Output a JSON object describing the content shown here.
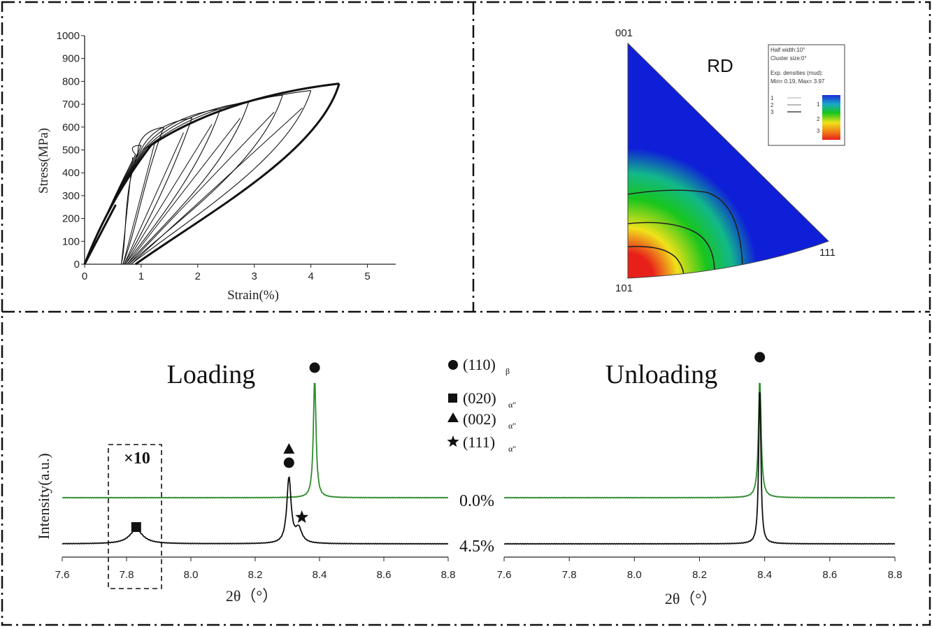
{
  "chart_data": [
    {
      "type": "line",
      "panel": "stress-strain",
      "xlabel": "Strain(%)",
      "ylabel": "Stress(MPa)",
      "xlim": [
        0,
        5.5
      ],
      "ylim": [
        0,
        1000
      ],
      "xticks": [
        "0",
        "1",
        "2",
        "3",
        "4",
        "5"
      ],
      "yticks": [
        "0",
        "100",
        "200",
        "300",
        "400",
        "500",
        "600",
        "700",
        "800",
        "900",
        "1000"
      ],
      "grid": false,
      "cycles": [
        {
          "max_strain": 1.0,
          "max_stress": 520,
          "residual_strain": 0.65
        },
        {
          "max_strain": 1.4,
          "max_stress": 600,
          "residual_strain": 0.68
        },
        {
          "max_strain": 1.9,
          "max_stress": 640,
          "residual_strain": 0.7
        },
        {
          "max_strain": 2.4,
          "max_stress": 680,
          "residual_strain": 0.72
        },
        {
          "max_strain": 2.9,
          "max_stress": 710,
          "residual_strain": 0.75
        },
        {
          "max_strain": 3.5,
          "max_stress": 740,
          "residual_strain": 0.78
        },
        {
          "max_strain": 4.0,
          "max_stress": 760,
          "residual_strain": 0.82
        },
        {
          "max_strain": 4.5,
          "max_stress": 790,
          "residual_strain": 0.9
        }
      ],
      "final_cycle_bold": true
    },
    {
      "type": "heatmap",
      "panel": "inverse-pole-figure",
      "title": "RD",
      "poles": [
        "001",
        "101",
        "111"
      ],
      "legend": {
        "lines": [
          "Half width:10°",
          "Cluster size:0°",
          "Exp. densities (mud):",
          "Min= 0.19, Max= 3.97"
        ],
        "contour_levels": [
          "1",
          "2",
          "3"
        ],
        "colorbar_labels": [
          "1",
          "2",
          "3"
        ],
        "min": 0.19,
        "max": 3.97
      },
      "colors": {
        "high": "#e8201a",
        "mid": "#f0e21a",
        "low": "#18c51c",
        "bg": "#0f1fd8"
      }
    },
    {
      "type": "line",
      "panel": "xrd-loading",
      "title": "Loading",
      "xlabel": "2θ（°）",
      "ylabel": "Intensity(a.u.)",
      "xlim": [
        7.6,
        8.8
      ],
      "xticks": [
        "7.6",
        "7.8",
        "8.0",
        "8.2",
        "8.4",
        "8.6",
        "8.8"
      ],
      "magnify_label": "×10",
      "magnify_range": [
        7.75,
        7.9
      ],
      "series": [
        {
          "name": "0.0%",
          "color": "#2e8b2e",
          "peaks": [
            {
              "x": 8.385,
              "height": 1.0,
              "width": 0.005
            }
          ]
        },
        {
          "name": "4.5%",
          "color": "#111111",
          "peaks": [
            {
              "x": 7.83,
              "height": 0.12,
              "width": 0.025
            },
            {
              "x": 8.305,
              "height": 0.55,
              "width": 0.008
            },
            {
              "x": 8.335,
              "height": 0.12,
              "width": 0.012
            }
          ]
        }
      ],
      "markers": [
        {
          "symbol": "circle",
          "x": 8.385
        },
        {
          "symbol": "triangle",
          "x": 8.305
        },
        {
          "symbol": "circle",
          "x": 8.305
        },
        {
          "symbol": "star",
          "x": 8.345
        },
        {
          "symbol": "square",
          "x": 7.83
        }
      ]
    },
    {
      "type": "line",
      "panel": "xrd-unloading",
      "title": "Unloading",
      "xlabel": "2θ（°）",
      "xlim": [
        7.6,
        8.8
      ],
      "xticks": [
        "7.6",
        "7.8",
        "8.0",
        "8.2",
        "8.4",
        "8.6",
        "8.8"
      ],
      "series": [
        {
          "name": "0.0%",
          "color": "#2e8b2e",
          "peaks": [
            {
              "x": 8.385,
              "height": 1.0,
              "width": 0.005
            }
          ]
        },
        {
          "name": "4.5%",
          "color": "#111111",
          "peaks": [
            {
              "x": 8.385,
              "height": 1.35,
              "width": 0.004
            }
          ]
        }
      ],
      "markers": [
        {
          "symbol": "circle",
          "x": 8.385
        }
      ]
    }
  ],
  "legend": [
    {
      "symbol": "circle",
      "hkl": "(110)",
      "phase": "β"
    },
    {
      "symbol": "square",
      "hkl": "(020)",
      "phase": "α\""
    },
    {
      "symbol": "triangle",
      "hkl": "(002)",
      "phase": "α\""
    },
    {
      "symbol": "star",
      "hkl": "(111)",
      "phase": "α\""
    }
  ],
  "strain_labels": [
    "0.0%",
    "4.5%"
  ]
}
